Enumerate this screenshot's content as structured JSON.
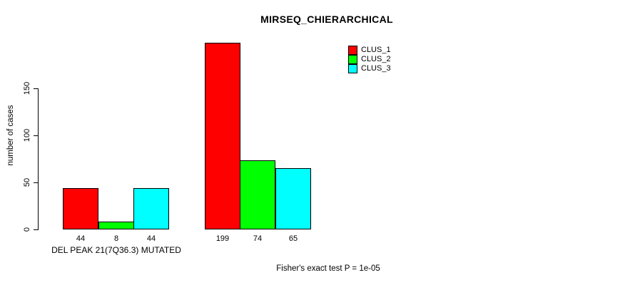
{
  "title": "MIRSEQ_CHIERARCHICAL",
  "chart_data": {
    "type": "bar",
    "title": "MIRSEQ_CHIERARCHICAL",
    "ylabel": "number of cases",
    "xlabel": "",
    "yticks": [
      0,
      50,
      100,
      150
    ],
    "ylim": [
      0,
      205
    ],
    "grid": false,
    "legend_position": "top-right-inside",
    "series": [
      "CLUS_1",
      "CLUS_2",
      "CLUS_3"
    ],
    "colors": [
      "#FF0000",
      "#00FF00",
      "#00FFFF"
    ],
    "bar_border_color": "#000000",
    "groups": [
      {
        "label": "DEL PEAK 21(7Q36.3) MUTATED",
        "values": [
          44,
          8,
          44
        ]
      },
      {
        "label": "",
        "values": [
          199,
          74,
          65
        ]
      }
    ],
    "bar_value_labels": [
      [
        "44",
        "8",
        "44"
      ],
      [
        "199",
        "74",
        "65"
      ]
    ],
    "annotation": "Fisher's exact test P = 1e-05"
  }
}
